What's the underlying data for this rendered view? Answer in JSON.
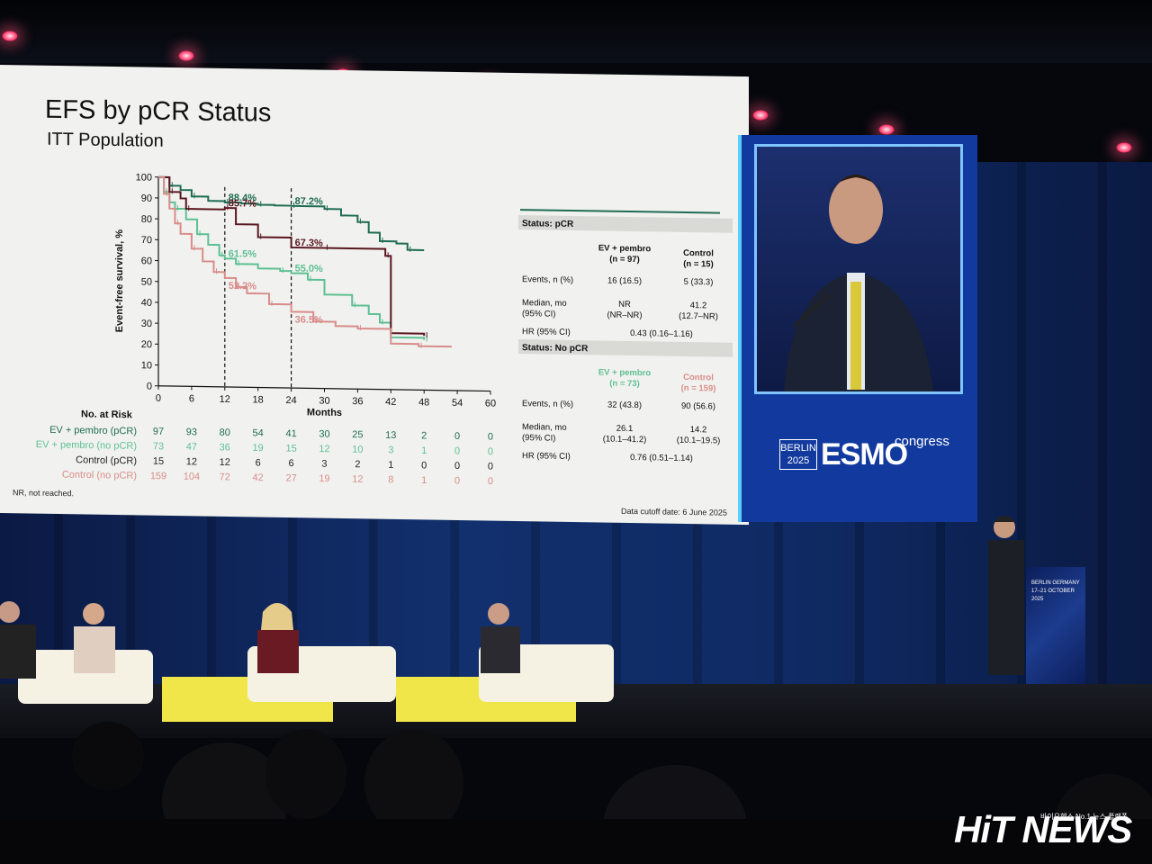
{
  "slide": {
    "title": "EFS by pCR Status",
    "subtitle": "ITT Population",
    "footnote": "NR, not reached.",
    "cutoff": "Data cutoff date: 6 June 2025"
  },
  "chart_data": {
    "type": "line",
    "title": "EFS by pCR Status",
    "xlabel": "Months",
    "ylabel": "Event-free survival, %",
    "xlim": [
      0,
      60
    ],
    "ylim": [
      0,
      100
    ],
    "x_ticks": [
      0,
      6,
      12,
      18,
      24,
      30,
      36,
      42,
      48,
      54,
      60
    ],
    "y_ticks": [
      0,
      10,
      20,
      30,
      40,
      50,
      60,
      70,
      80,
      90,
      100
    ],
    "reference_lines_x": [
      12,
      24
    ],
    "series": [
      {
        "name": "EV + pembro (pCR)",
        "color": "#1f6b54",
        "x": [
          0,
          2,
          4,
          6,
          9,
          12,
          15,
          18,
          21,
          24,
          27,
          30,
          33,
          36,
          38,
          40,
          43,
          45,
          48
        ],
        "y": [
          100,
          96,
          94,
          91,
          89,
          88.4,
          88,
          87.5,
          87.3,
          87.2,
          87.2,
          86,
          83,
          80,
          75,
          71,
          70,
          67,
          67
        ]
      },
      {
        "name": "EV + pembro (no pCR)",
        "color": "#5dbf93",
        "x": [
          0,
          1,
          2,
          3,
          5,
          7,
          9,
          11,
          12,
          14,
          18,
          22,
          24,
          27,
          30,
          35,
          38,
          40,
          42,
          48
        ],
        "y": [
          100,
          93,
          88,
          85,
          80,
          73,
          68,
          63,
          61.5,
          59,
          57,
          56,
          55,
          52,
          45,
          40,
          36,
          32,
          25,
          24
        ]
      },
      {
        "name": "Control (pCR)",
        "color": "#5a1520",
        "x": [
          0,
          2,
          4,
          5,
          8,
          12,
          14,
          18,
          24,
          30,
          36,
          41,
          42,
          48
        ],
        "y": [
          100,
          93,
          90,
          85,
          85,
          85.7,
          78,
          72,
          67.3,
          67.3,
          67.3,
          64,
          27,
          26
        ]
      },
      {
        "name": "Control (no pCR)",
        "color": "#d88c8a",
        "x": [
          0,
          1,
          2,
          3,
          4,
          6,
          8,
          10,
          12,
          14,
          16,
          20,
          24,
          28,
          32,
          36,
          42,
          47,
          53
        ],
        "y": [
          100,
          92,
          85,
          78,
          73,
          66,
          60,
          55,
          52.2,
          48,
          45,
          40,
          36.5,
          32,
          30,
          29,
          22,
          21,
          21
        ]
      }
    ],
    "annotations": [
      {
        "text": "88.4%",
        "x": 12,
        "y": 88.4,
        "series": 0
      },
      {
        "text": "87.2%",
        "x": 24,
        "y": 87.2,
        "series": 0
      },
      {
        "text": "85.7%",
        "x": 12,
        "y": 85.7,
        "series": 2
      },
      {
        "text": "67.3%",
        "x": 24,
        "y": 67.3,
        "series": 2
      },
      {
        "text": "61.5%",
        "x": 12,
        "y": 61.5,
        "series": 1
      },
      {
        "text": "55.0%",
        "x": 24,
        "y": 55.0,
        "series": 1
      },
      {
        "text": "52.2%",
        "x": 12,
        "y": 52.2,
        "series": 3
      },
      {
        "text": "36.5%",
        "x": 24,
        "y": 36.5,
        "series": 3
      }
    ],
    "risk_table": {
      "title": "No. at Risk",
      "rows": [
        {
          "label": "EV + pembro (pCR)",
          "color": "#1f6b54",
          "values": [
            "97",
            "93",
            "80",
            "54",
            "41",
            "30",
            "25",
            "13",
            "2",
            "0",
            "0"
          ]
        },
        {
          "label": "EV + pembro (no pCR)",
          "color": "#5dbf93",
          "values": [
            "73",
            "47",
            "36",
            "19",
            "15",
            "12",
            "10",
            "3",
            "1",
            "0",
            "0"
          ]
        },
        {
          "label": "Control (pCR)",
          "color": "#222222",
          "values": [
            "15",
            "12",
            "12",
            "6",
            "6",
            "3",
            "2",
            "1",
            "0",
            "0",
            "0"
          ]
        },
        {
          "label": "Control (no pCR)",
          "color": "#d88c8a",
          "values": [
            "159",
            "104",
            "72",
            "42",
            "27",
            "19",
            "12",
            "8",
            "1",
            "0",
            "0"
          ]
        }
      ]
    }
  },
  "stats": {
    "pcr": {
      "header": "Status: pCR",
      "col1": "EV + pembro\n(n = 97)",
      "col2": "Control\n(n = 15)",
      "rows": [
        {
          "label": "Events, n (%)",
          "v1": "16 (16.5)",
          "v2": "5 (33.3)"
        },
        {
          "label": "Median, mo\n(95% CI)",
          "v1": "NR\n(NR–NR)",
          "v2": "41.2\n(12.7–NR)"
        }
      ],
      "hr_label": "HR (95% CI)",
      "hr": "0.43 (0.16–1.16)"
    },
    "nopcr": {
      "header": "Status: No pCR",
      "col1": "EV + pembro\n(n = 73)",
      "col2": "Control\n(n = 159)",
      "rows": [
        {
          "label": "Events, n (%)",
          "v1": "32 (43.8)",
          "v2": "90 (56.6)"
        },
        {
          "label": "Median, mo\n(95% CI)",
          "v1": "26.1\n(10.1–41.2)",
          "v2": "14.2\n(10.1–19.5)"
        }
      ],
      "hr_label": "HR (95% CI)",
      "hr": "0.76 (0.51–1.14)"
    }
  },
  "esmo": {
    "city": "BERLIN",
    "year": "2025",
    "brand": "ESMO",
    "suffix": "congress"
  },
  "podium": {
    "line1": "BERLIN GERMANY",
    "line2": "17–21 OCTOBER 2025"
  },
  "watermark": {
    "logo": "HiT NEWS",
    "tagline": "바이오헬스 No.1 뉴스 플랫폼"
  },
  "colors": {
    "ev_pcr": "#1f6b54",
    "ev_nopcr": "#5dbf93",
    "ctrl_pcr": "#5a1520",
    "ctrl_nopcr": "#d88c8a",
    "esmo_blue": "#123a9e"
  }
}
